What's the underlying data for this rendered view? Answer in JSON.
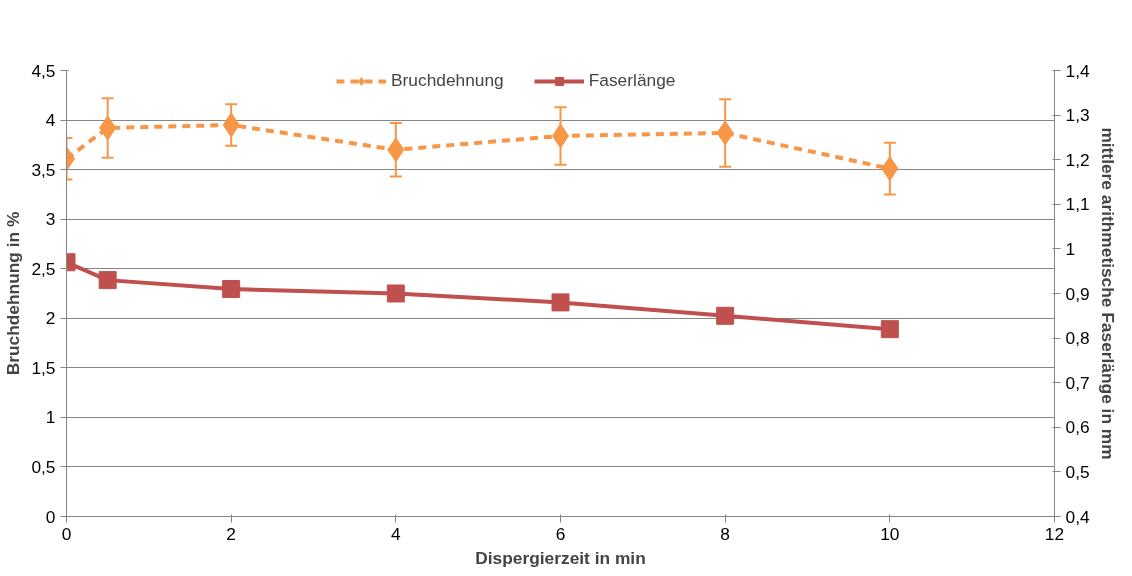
{
  "chart_data": {
    "type": "line",
    "xlabel": "Dispergierzeit in min",
    "ylabel": "Bruchdehnung in %",
    "y2label": "mittlere arithmetische Faserlänge in mm",
    "x": [
      0,
      0.5,
      2,
      4,
      6,
      8,
      10
    ],
    "series": [
      {
        "name": "Bruchdehnung",
        "color": "#f79646",
        "marker": "diamond",
        "line_style": "dashed",
        "values": [
          3.61,
          3.92,
          3.95,
          3.7,
          3.84,
          3.87,
          3.51
        ],
        "errors": [
          0.21,
          0.3,
          0.21,
          0.27,
          0.29,
          0.34,
          0.26
        ]
      },
      {
        "name": "Faserlänge",
        "color": "#c0504d",
        "marker": "square",
        "line_style": "solid",
        "axis": "y2",
        "values": [
          0.97,
          0.93,
          0.91,
          0.9,
          0.88,
          0.85,
          0.82
        ]
      }
    ],
    "xlim": [
      0,
      12
    ],
    "xticks": [
      0,
      2,
      4,
      6,
      8,
      10,
      12
    ],
    "ylim": [
      0,
      4.5
    ],
    "yticks": [
      0,
      {
        "value": 0.5,
        "label": "0,5"
      },
      1,
      {
        "value": 1.5,
        "label": "1,5"
      },
      2,
      {
        "value": 2.5,
        "label": "2,5"
      },
      3,
      {
        "value": 3.5,
        "label": "3,5"
      },
      4,
      {
        "value": 4.5,
        "label": "4,5"
      }
    ],
    "y2lim": [
      0.4,
      1.4
    ],
    "y2ticks": [
      {
        "value": 0.4,
        "label": "0,4"
      },
      {
        "value": 0.5,
        "label": "0,5"
      },
      {
        "value": 0.6,
        "label": "0,6"
      },
      {
        "value": 0.7,
        "label": "0,7"
      },
      {
        "value": 0.8,
        "label": "0,8"
      },
      {
        "value": 0.9,
        "label": "0,9"
      },
      1,
      {
        "value": 1.1,
        "label": "1,1"
      },
      {
        "value": 1.2,
        "label": "1,2"
      },
      {
        "value": 1.3,
        "label": "1,3"
      },
      {
        "value": 1.4,
        "label": "1,4"
      }
    ],
    "grid": "y",
    "legend": "top"
  }
}
